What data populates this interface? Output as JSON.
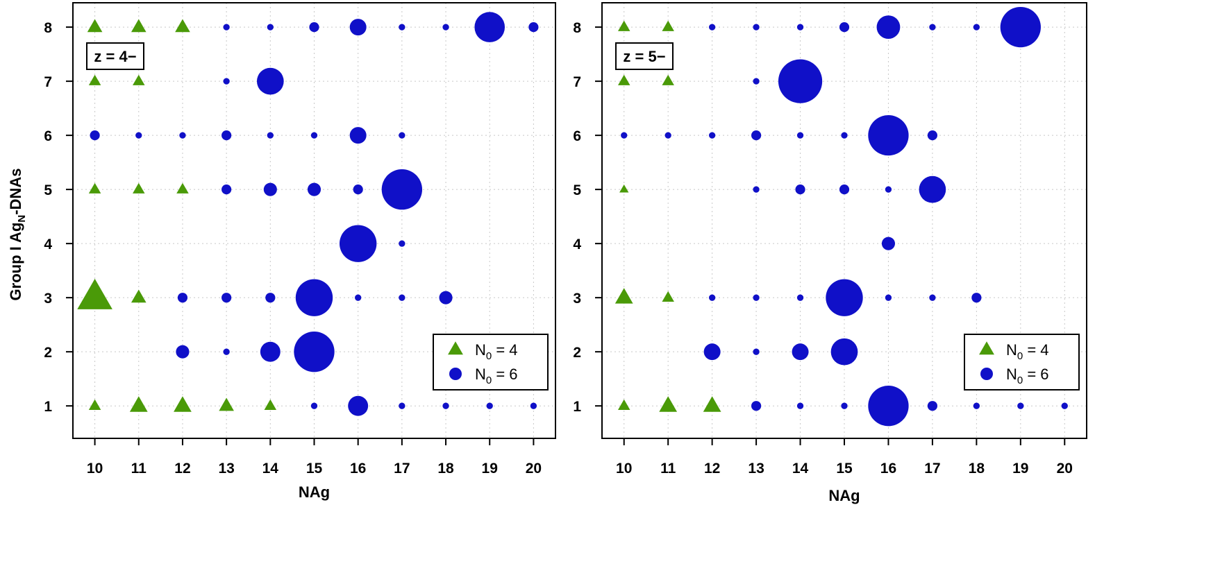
{
  "colors": {
    "triangle": "#4a9a08",
    "circle": "#1010c8",
    "grid": "#c8c8c8"
  },
  "ylabel_prefix": "Group I Ag",
  "ylabel_sub": "N",
  "ylabel_suffix": "-DNAs",
  "chart_data": [
    {
      "type": "scatter",
      "xlabel": "NAg",
      "annotation": "z = 4−",
      "x_ticks": [
        10,
        11,
        12,
        13,
        14,
        15,
        16,
        17,
        18,
        19,
        20
      ],
      "y_ticks": [
        1,
        2,
        3,
        4,
        5,
        6,
        7,
        8
      ],
      "xlim": [
        9.5,
        20.5
      ],
      "ylim": [
        0.4,
        8.45
      ],
      "grid": true,
      "legend": {
        "placement": "bottom-right",
        "entries": [
          {
            "marker": "triangle",
            "label_main": "N",
            "label_sub": "0",
            "label_rest": " = 4"
          },
          {
            "marker": "circle",
            "label_main": "N",
            "label_sub": "0",
            "label_rest": " = 6"
          }
        ]
      },
      "series": [
        {
          "marker": "triangle",
          "points": [
            {
              "x": 10,
              "y": 8,
              "s": 3
            },
            {
              "x": 11,
              "y": 8,
              "s": 3
            },
            {
              "x": 12,
              "y": 8,
              "s": 3
            },
            {
              "x": 10,
              "y": 7,
              "s": 2
            },
            {
              "x": 11,
              "y": 7,
              "s": 2
            },
            {
              "x": 10,
              "y": 5,
              "s": 2
            },
            {
              "x": 11,
              "y": 5,
              "s": 2
            },
            {
              "x": 12,
              "y": 5,
              "s": 2
            },
            {
              "x": 10,
              "y": 3,
              "s": 10
            },
            {
              "x": 11,
              "y": 3,
              "s": 3
            },
            {
              "x": 10,
              "y": 1,
              "s": 2
            },
            {
              "x": 11,
              "y": 1,
              "s": 4
            },
            {
              "x": 12,
              "y": 1,
              "s": 4
            },
            {
              "x": 13,
              "y": 1,
              "s": 3
            },
            {
              "x": 14,
              "y": 1,
              "s": 2
            }
          ]
        },
        {
          "marker": "circle",
          "points": [
            {
              "x": 13,
              "y": 8,
              "s": 1
            },
            {
              "x": 14,
              "y": 8,
              "s": 1
            },
            {
              "x": 15,
              "y": 8,
              "s": 2
            },
            {
              "x": 16,
              "y": 8,
              "s": 4
            },
            {
              "x": 17,
              "y": 8,
              "s": 1
            },
            {
              "x": 18,
              "y": 8,
              "s": 1
            },
            {
              "x": 19,
              "y": 8,
              "s": 8
            },
            {
              "x": 20,
              "y": 8,
              "s": 2
            },
            {
              "x": 13,
              "y": 7,
              "s": 1
            },
            {
              "x": 14,
              "y": 7,
              "s": 7
            },
            {
              "x": 10,
              "y": 6,
              "s": 2
            },
            {
              "x": 11,
              "y": 6,
              "s": 1
            },
            {
              "x": 12,
              "y": 6,
              "s": 1
            },
            {
              "x": 13,
              "y": 6,
              "s": 2
            },
            {
              "x": 14,
              "y": 6,
              "s": 1
            },
            {
              "x": 15,
              "y": 6,
              "s": 1
            },
            {
              "x": 16,
              "y": 6,
              "s": 4
            },
            {
              "x": 17,
              "y": 6,
              "s": 1
            },
            {
              "x": 13,
              "y": 5,
              "s": 2
            },
            {
              "x": 14,
              "y": 5,
              "s": 3
            },
            {
              "x": 15,
              "y": 5,
              "s": 3
            },
            {
              "x": 16,
              "y": 5,
              "s": 2
            },
            {
              "x": 17,
              "y": 5,
              "s": 11
            },
            {
              "x": 16,
              "y": 4,
              "s": 10
            },
            {
              "x": 17,
              "y": 4,
              "s": 1
            },
            {
              "x": 12,
              "y": 3,
              "s": 2
            },
            {
              "x": 13,
              "y": 3,
              "s": 2
            },
            {
              "x": 14,
              "y": 3,
              "s": 2
            },
            {
              "x": 15,
              "y": 3,
              "s": 10
            },
            {
              "x": 16,
              "y": 3,
              "s": 1
            },
            {
              "x": 17,
              "y": 3,
              "s": 1
            },
            {
              "x": 18,
              "y": 3,
              "s": 3
            },
            {
              "x": 12,
              "y": 2,
              "s": 3
            },
            {
              "x": 13,
              "y": 2,
              "s": 1
            },
            {
              "x": 14,
              "y": 2,
              "s": 5
            },
            {
              "x": 15,
              "y": 2,
              "s": 11
            },
            {
              "x": 15,
              "y": 1,
              "s": 1
            },
            {
              "x": 16,
              "y": 1,
              "s": 5
            },
            {
              "x": 17,
              "y": 1,
              "s": 1
            },
            {
              "x": 18,
              "y": 1,
              "s": 1
            },
            {
              "x": 19,
              "y": 1,
              "s": 1
            },
            {
              "x": 20,
              "y": 1,
              "s": 1
            }
          ]
        }
      ]
    },
    {
      "type": "scatter",
      "xlabel": "NAg",
      "annotation": "z = 5−",
      "x_ticks": [
        10,
        11,
        12,
        13,
        14,
        15,
        16,
        17,
        18,
        19,
        20
      ],
      "y_ticks": [
        1,
        2,
        3,
        4,
        5,
        6,
        7,
        8
      ],
      "xlim": [
        9.5,
        20.5
      ],
      "ylim": [
        0.4,
        8.45
      ],
      "grid": true,
      "legend": {
        "placement": "bottom-right",
        "entries": [
          {
            "marker": "triangle",
            "label_main": "N",
            "label_sub": "0",
            "label_rest": " = 4"
          },
          {
            "marker": "circle",
            "label_main": "N",
            "label_sub": "0",
            "label_rest": " = 6"
          }
        ]
      },
      "series": [
        {
          "marker": "triangle",
          "points": [
            {
              "x": 10,
              "y": 8,
              "s": 2
            },
            {
              "x": 11,
              "y": 8,
              "s": 2
            },
            {
              "x": 10,
              "y": 7,
              "s": 2
            },
            {
              "x": 11,
              "y": 7,
              "s": 2
            },
            {
              "x": 10,
              "y": 5,
              "s": 1
            },
            {
              "x": 10,
              "y": 3,
              "s": 4
            },
            {
              "x": 11,
              "y": 3,
              "s": 2
            },
            {
              "x": 10,
              "y": 1,
              "s": 2
            },
            {
              "x": 11,
              "y": 1,
              "s": 4
            },
            {
              "x": 12,
              "y": 1,
              "s": 4
            }
          ]
        },
        {
          "marker": "circle",
          "points": [
            {
              "x": 12,
              "y": 8,
              "s": 1
            },
            {
              "x": 13,
              "y": 8,
              "s": 1
            },
            {
              "x": 14,
              "y": 8,
              "s": 1
            },
            {
              "x": 15,
              "y": 8,
              "s": 2
            },
            {
              "x": 16,
              "y": 8,
              "s": 6
            },
            {
              "x": 17,
              "y": 8,
              "s": 1
            },
            {
              "x": 18,
              "y": 8,
              "s": 1
            },
            {
              "x": 19,
              "y": 8,
              "s": 11
            },
            {
              "x": 13,
              "y": 7,
              "s": 1
            },
            {
              "x": 14,
              "y": 7,
              "s": 12
            },
            {
              "x": 10,
              "y": 6,
              "s": 1
            },
            {
              "x": 11,
              "y": 6,
              "s": 1
            },
            {
              "x": 12,
              "y": 6,
              "s": 1
            },
            {
              "x": 13,
              "y": 6,
              "s": 2
            },
            {
              "x": 14,
              "y": 6,
              "s": 1
            },
            {
              "x": 15,
              "y": 6,
              "s": 1
            },
            {
              "x": 16,
              "y": 6,
              "s": 11
            },
            {
              "x": 17,
              "y": 6,
              "s": 2
            },
            {
              "x": 13,
              "y": 5,
              "s": 1
            },
            {
              "x": 14,
              "y": 5,
              "s": 2
            },
            {
              "x": 15,
              "y": 5,
              "s": 2
            },
            {
              "x": 16,
              "y": 5,
              "s": 1
            },
            {
              "x": 17,
              "y": 5,
              "s": 7
            },
            {
              "x": 16,
              "y": 4,
              "s": 3
            },
            {
              "x": 12,
              "y": 3,
              "s": 1
            },
            {
              "x": 13,
              "y": 3,
              "s": 1
            },
            {
              "x": 14,
              "y": 3,
              "s": 1
            },
            {
              "x": 15,
              "y": 3,
              "s": 10
            },
            {
              "x": 16,
              "y": 3,
              "s": 1
            },
            {
              "x": 17,
              "y": 3,
              "s": 1
            },
            {
              "x": 18,
              "y": 3,
              "s": 2
            },
            {
              "x": 12,
              "y": 2,
              "s": 4
            },
            {
              "x": 13,
              "y": 2,
              "s": 1
            },
            {
              "x": 14,
              "y": 2,
              "s": 4
            },
            {
              "x": 15,
              "y": 2,
              "s": 7
            },
            {
              "x": 13,
              "y": 1,
              "s": 2
            },
            {
              "x": 14,
              "y": 1,
              "s": 1
            },
            {
              "x": 15,
              "y": 1,
              "s": 1
            },
            {
              "x": 16,
              "y": 1,
              "s": 11
            },
            {
              "x": 17,
              "y": 1,
              "s": 2
            },
            {
              "x": 18,
              "y": 1,
              "s": 1
            },
            {
              "x": 19,
              "y": 1,
              "s": 1
            },
            {
              "x": 20,
              "y": 1,
              "s": 1
            }
          ]
        }
      ]
    }
  ]
}
